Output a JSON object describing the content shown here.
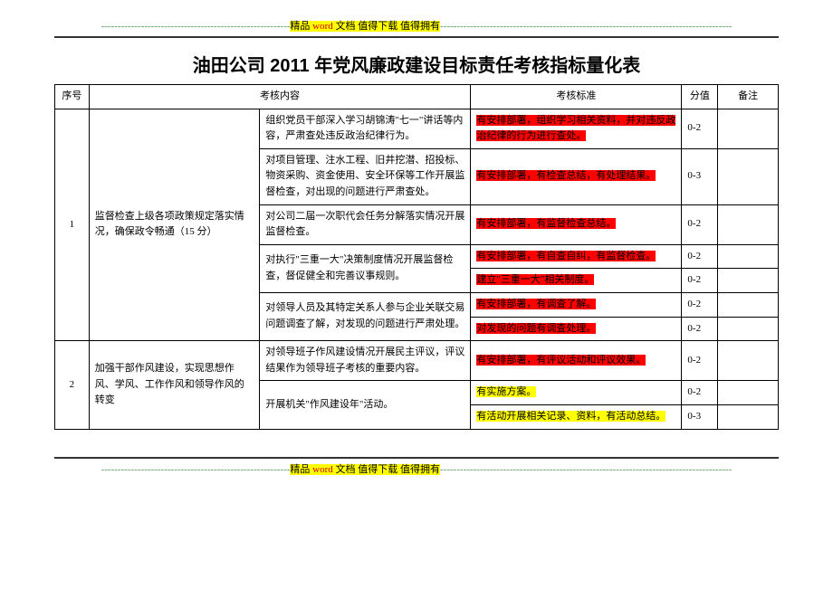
{
  "banner": {
    "dashes": "---------------------------------------------------------",
    "prefix": "精品",
    "word": " word ",
    "suffix": "文档  值得下载  值得拥有",
    "tail": "----------------------------------------------------------------------------------------"
  },
  "title": "油田公司 2011 年党风廉政建设目标责任考核指标量化表",
  "headers": {
    "seq": "序号",
    "content": "考核内容",
    "standard": "考核标准",
    "score": "分值",
    "remark": "备注"
  },
  "sections": [
    {
      "seq": "1",
      "category": "监督检查上级各项政策规定落实情况，确保政令畅通（15 分）",
      "rows": [
        {
          "content": "组织党员干部深入学习胡锦涛\"七一\"讲话等内容，严肃查处违反政治纪律行为。",
          "standards": [
            {
              "text": "有安排部署，组织学习相关资料，并对违反政治纪律的行为进行查处。",
              "color": "red"
            }
          ],
          "score": "0-2"
        },
        {
          "content": "对项目管理、注水工程、旧井挖潜、招投标、物资采购、资金使用、安全环保等工作开展监督检查，对出现的问题进行严肃查处。",
          "standards": [
            {
              "text": "有安排部署，有检查总结，有处理结果。",
              "color": "red"
            }
          ],
          "score": "0-3"
        },
        {
          "content": "对公司二届一次职代会任务分解落实情况开展监督检查。",
          "standards": [
            {
              "text": "有安排部署，有监督检查总结。",
              "color": "red"
            }
          ],
          "score": "0-2"
        },
        {
          "content": "对执行\"三重一大\"决策制度情况开展监督检查，督促健全和完善议事规则。",
          "standards": [
            {
              "text": "有安排部署，有自查自纠，有监督检查。",
              "color": "red"
            },
            {
              "text": "建立\"三重一大\"相关制度。",
              "color": "red"
            }
          ],
          "scores": [
            "0-2",
            "0-2"
          ]
        },
        {
          "content": "对领导人员及其特定关系人参与企业关联交易问题调查了解，对发现的问题进行严肃处理。",
          "standards": [
            {
              "text": "有安排部署，有调查了解。",
              "color": "red"
            },
            {
              "text": "对发现的问题有调查处理。",
              "color": "red"
            }
          ],
          "scores": [
            "0-2",
            "0-2"
          ]
        }
      ]
    },
    {
      "seq": "2",
      "category": "加强干部作风建设，实现思想作风、学风、工作作风和领导作风的转变",
      "rows": [
        {
          "content": "对领导班子作风建设情况开展民主评议，评议结果作为领导班子考核的重要内容。",
          "standards": [
            {
              "text": "有安排部署，有评议活动和评议效果。",
              "color": "red"
            }
          ],
          "score": "0-2"
        },
        {
          "content": "开展机关\"作风建设年\"活动。",
          "standards": [
            {
              "text": "有实施方案。",
              "color": "yellow"
            },
            {
              "text": "有活动开展相关记录、资料，有活动总结。",
              "color": "yellow"
            }
          ],
          "scores": [
            "0-2",
            "0-3"
          ]
        }
      ]
    }
  ]
}
